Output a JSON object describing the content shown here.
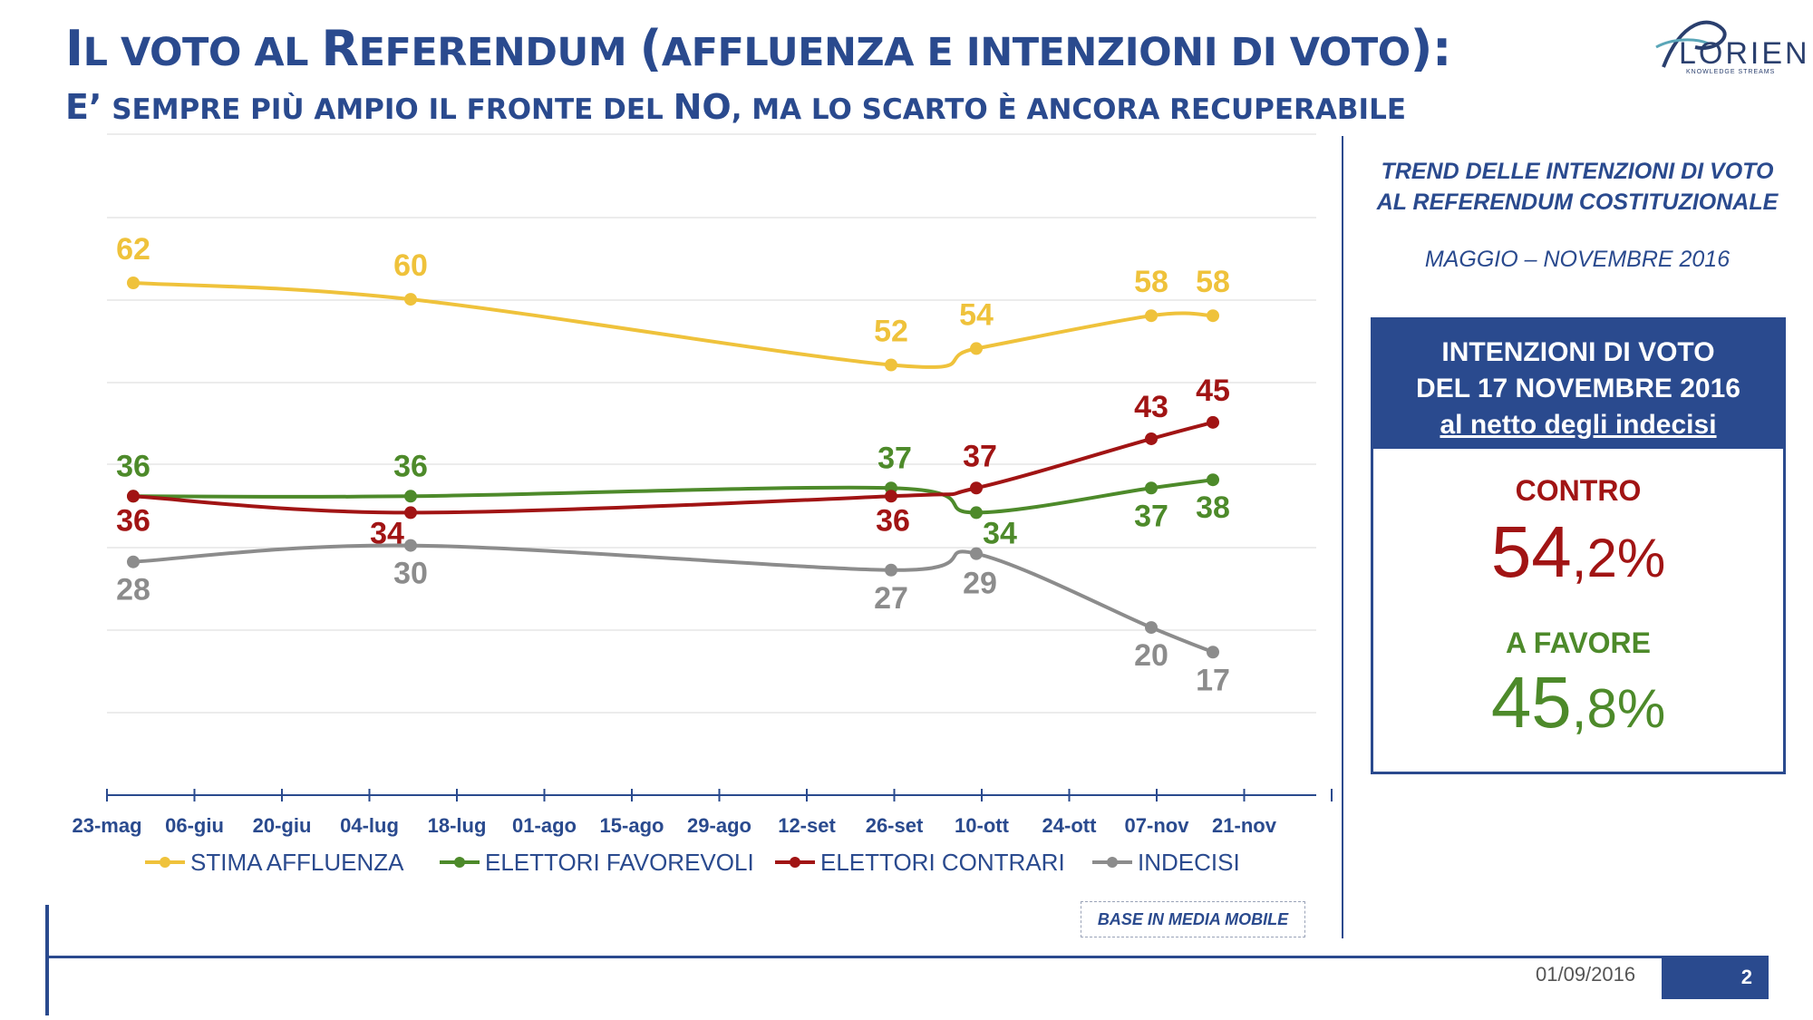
{
  "header": {
    "title_line1_cap1": "I",
    "title_line1_part1": "L VOTO AL ",
    "title_line1_cap2": "R",
    "title_line1_part2": "EFERENDUM ",
    "title_line1_part3": "(",
    "title_line1_part4": "AFFLUENZA E INTENZIONI DI VOTO",
    "title_line1_part5": "):",
    "title_line2_cap1": "E’",
    "title_line2_part1": " SEMPRE PIÙ AMPIO IL FRONTE DEL ",
    "title_line2_cap2": "NO",
    "title_line2_part2": ", MA LO SCARTO È ANCORA RECUPERABILE"
  },
  "logo": {
    "name": "LORIEN",
    "tagline": "KNOWLEDGE STREAMS"
  },
  "side": {
    "title_line1": "TREND DELLE INTENZIONI DI VOTO",
    "title_line2": "AL REFERENDUM COSTITUZIONALE",
    "period": "MAGGIO – NOVEMBRE 2016",
    "box_line1": "INTENZIONI DI VOTO",
    "box_line2": "DEL 17 NOVEMBRE 2016",
    "box_line3": "al netto degli indecisi",
    "contro_label": "CONTRO",
    "contro_int": "54",
    "contro_dec": ",2%",
    "favore_label": "A FAVORE",
    "favore_int": "45",
    "favore_dec": ",8%"
  },
  "base_note": "BASE IN MEDIA MOBILE",
  "footer": {
    "date": "01/09/2016",
    "page": "2"
  },
  "colors": {
    "brand": "#2a4a8e",
    "affluenza": "#efc23b",
    "favorevoli": "#4d8a2a",
    "contrari": "#a11414",
    "indecisi": "#8c8c8c"
  },
  "chart_data": {
    "type": "line",
    "x_ticks": [
      "23-mag",
      "06-giu",
      "20-giu",
      "04-lug",
      "18-lug",
      "01-ago",
      "15-ago",
      "29-ago",
      "12-set",
      "26-set",
      "10-ott",
      "24-ott",
      "07-nov",
      "21-nov"
    ],
    "x_points": [
      "23-mag",
      "13-lug",
      "26-set",
      "10-ott",
      "07-nov",
      "17-nov"
    ],
    "grid": true,
    "legend_position": "bottom",
    "series": [
      {
        "name": "STIMA AFFLUENZA",
        "color": "#efc23b",
        "values": [
          62,
          60,
          52,
          54,
          58,
          58
        ]
      },
      {
        "name": "ELETTORI FAVOREVOLI",
        "color": "#4d8a2a",
        "values": [
          36,
          36,
          37,
          34,
          37,
          38
        ]
      },
      {
        "name": "ELETTORI CONTRARI",
        "color": "#a11414",
        "values": [
          36,
          34,
          36,
          37,
          43,
          45
        ]
      },
      {
        "name": "INDECISI",
        "color": "#8c8c8c",
        "values": [
          28,
          30,
          27,
          29,
          20,
          17
        ]
      }
    ]
  }
}
